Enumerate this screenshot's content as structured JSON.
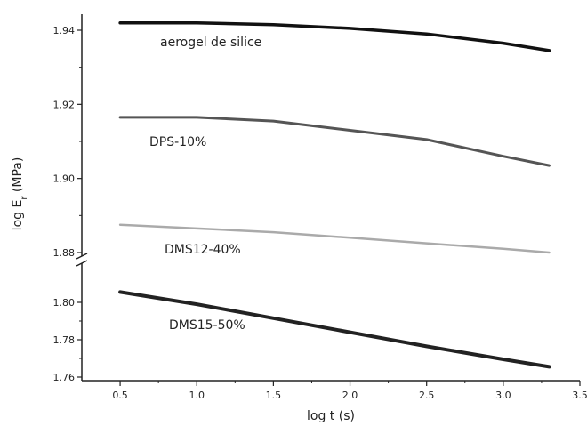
{
  "chart_data": {
    "type": "line",
    "xlabel": "log t (s)",
    "ylabel": "log E_r (MPa)",
    "xlim": [
      0.25,
      3.5
    ],
    "x_ticks": [
      "0.5",
      "1.0",
      "1.5",
      "2.0",
      "2.5",
      "3.0",
      "3.5"
    ],
    "y_axis": {
      "broken": true,
      "break_between": [
        1.81,
        1.88
      ],
      "upper_segment": {
        "range": [
          1.88,
          1.945
        ],
        "ticks": [
          "1.88",
          "1.90",
          "1.92",
          "1.94"
        ]
      },
      "lower_segment": {
        "range": [
          1.755,
          1.81
        ],
        "ticks": [
          "1.76",
          "1.78",
          "1.80"
        ]
      }
    },
    "series": [
      {
        "name": "aerogel de silice",
        "color": "#111111",
        "x": [
          0.5,
          1.0,
          1.5,
          2.0,
          2.5,
          3.0,
          3.3
        ],
        "y": [
          1.942,
          1.942,
          1.9415,
          1.9405,
          1.939,
          1.9365,
          1.9345
        ]
      },
      {
        "name": "DPS-10%",
        "color": "#555555",
        "x": [
          0.5,
          1.0,
          1.5,
          2.0,
          2.5,
          3.0,
          3.3
        ],
        "y": [
          1.9165,
          1.9165,
          1.9155,
          1.913,
          1.9105,
          1.906,
          1.9035
        ]
      },
      {
        "name": "DMS12-40%",
        "color": "#aaaaaa",
        "x": [
          0.5,
          1.0,
          1.5,
          2.0,
          2.5,
          3.0,
          3.3
        ],
        "y": [
          1.8875,
          1.8865,
          1.8855,
          1.884,
          1.8825,
          1.881,
          1.88
        ]
      },
      {
        "name": "DMS15-50%",
        "color": "#222222",
        "x": [
          0.5,
          1.0,
          1.5,
          2.0,
          2.5,
          3.0,
          3.3
        ],
        "y": [
          1.8055,
          1.799,
          1.7915,
          1.784,
          1.7765,
          1.7695,
          1.7655
        ]
      }
    ]
  }
}
